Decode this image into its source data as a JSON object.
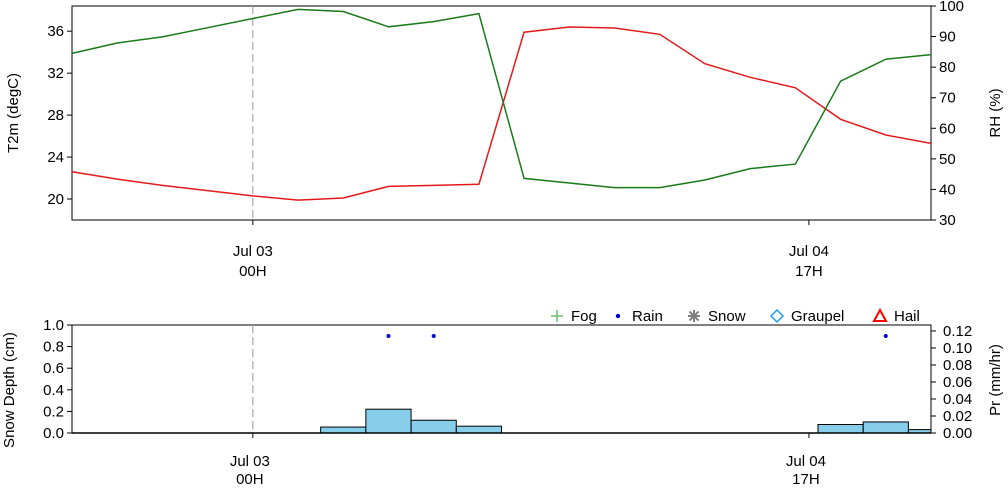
{
  "colors": {
    "temperature": "#e31a1c",
    "rh": "#1a7a1a",
    "precip_bar": "#87ceeb",
    "rain_marker": "#0000cc",
    "fog": "#6fbf6f",
    "snow": "#808080",
    "graupel": "#1fa0e0",
    "hail": "#ff0000",
    "marker_line": "#999999"
  },
  "chart_data": [
    {
      "type": "line",
      "ylabel_left": "T2m (degC)",
      "ylabel_right": "RH (%)",
      "y_left_ticks": [
        "20",
        "24",
        "28",
        "32",
        "36"
      ],
      "y_left_range": [
        18.0,
        38.4
      ],
      "y_right_ticks": [
        "30",
        "40",
        "50",
        "60",
        "70",
        "80",
        "90",
        "100"
      ],
      "y_right_range": [
        30,
        100
      ],
      "x_range": [
        0,
        19
      ],
      "x_ticks": [
        {
          "x": 4,
          "line1": "Jul 03",
          "line2": "00H"
        },
        {
          "x": 16.3,
          "line1": "Jul 04",
          "line2": "17H"
        }
      ],
      "vline_x": 4,
      "series": [
        {
          "key": "temperature",
          "axis": "left",
          "x": [
            0,
            1,
            2,
            3,
            4,
            5,
            6,
            7,
            8,
            9,
            10,
            11,
            12,
            13,
            14,
            15,
            16,
            17,
            18,
            19
          ],
          "values": [
            22.6,
            21.9,
            21.3,
            20.8,
            20.3,
            19.9,
            20.1,
            21.2,
            21.3,
            21.4,
            35.9,
            36.4,
            36.3,
            35.7,
            32.9,
            31.6,
            30.6,
            27.6,
            26.1,
            25.3
          ]
        },
        {
          "key": "rh",
          "axis": "right",
          "x": [
            0,
            1,
            2,
            3,
            4,
            5,
            6,
            7,
            8,
            9,
            10,
            11,
            12,
            13,
            14,
            15,
            16,
            17,
            18,
            19
          ],
          "values": [
            84.5,
            87.9,
            89.9,
            92.9,
            95.9,
            98.9,
            98.2,
            93.2,
            94.9,
            97.5,
            43.6,
            42.1,
            40.6,
            40.6,
            43.1,
            46.8,
            48.3,
            75.4,
            82.6,
            84.1
          ]
        }
      ]
    },
    {
      "type": "bar",
      "ylabel_left": "Snow Depth (cm)",
      "ylabel_right": "Pr (mm/hr)",
      "y_left_ticks": [
        "0.0",
        "0.2",
        "0.4",
        "0.6",
        "0.8",
        "1.0"
      ],
      "y_left_range": [
        0,
        1.0
      ],
      "y_right_ticks": [
        "0.00",
        "0.02",
        "0.04",
        "0.06",
        "0.08",
        "0.10",
        "0.12"
      ],
      "y_right_range": [
        0,
        0.127
      ],
      "x_range": [
        0,
        19
      ],
      "x_ticks": [
        {
          "x": 4,
          "line1": "Jul 03",
          "line2": "00H"
        },
        {
          "x": 16.3,
          "line1": "Jul 04",
          "line2": "17H"
        }
      ],
      "vline_x": 4,
      "legend": [
        {
          "label": "Fog",
          "symbol": "plus",
          "color_key": "fog"
        },
        {
          "label": "Rain",
          "symbol": "dot",
          "color_key": "rain_marker"
        },
        {
          "label": "Snow",
          "symbol": "asterisk",
          "color_key": "snow"
        },
        {
          "label": "Graupel",
          "symbol": "diamond",
          "color_key": "graupel"
        },
        {
          "label": "Hail",
          "symbol": "triangle",
          "color_key": "hail"
        }
      ],
      "snow_depth": [
        0,
        0,
        0,
        0,
        0,
        0,
        0,
        0,
        0,
        0,
        0,
        0,
        0,
        0,
        0,
        0,
        0,
        0,
        0,
        0
      ],
      "precip_bars": [
        {
          "x0": 5.5,
          "x1": 6.5,
          "value": 0.007
        },
        {
          "x0": 6.5,
          "x1": 7.5,
          "value": 0.028
        },
        {
          "x0": 7.5,
          "x1": 8.5,
          "value": 0.015
        },
        {
          "x0": 8.5,
          "x1": 9.5,
          "value": 0.008
        },
        {
          "x0": 16.5,
          "x1": 17.5,
          "value": 0.01
        },
        {
          "x0": 17.5,
          "x1": 18.5,
          "value": 0.013
        },
        {
          "x0": 18.5,
          "x1": 19.0,
          "value": 0.004
        }
      ],
      "rain_markers_x": [
        7.0,
        8.0,
        18.0
      ]
    }
  ]
}
